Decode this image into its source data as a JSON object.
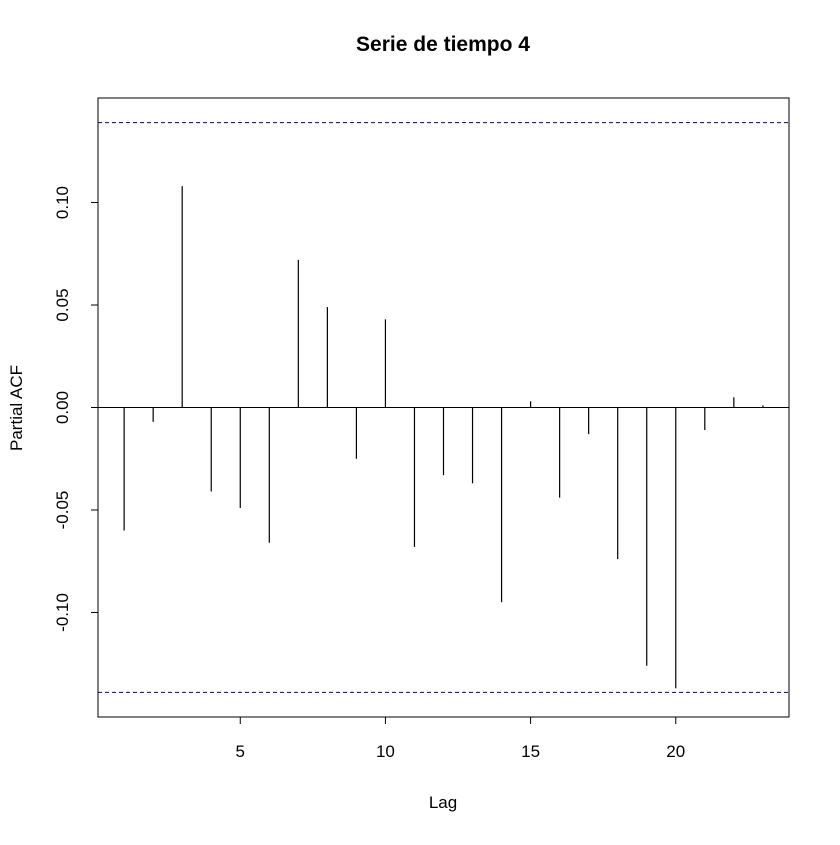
{
  "chart_data": {
    "type": "bar",
    "title": "Serie de tiempo 4",
    "xlabel": "Lag",
    "ylabel": "Partial ACF",
    "x": [
      1,
      2,
      3,
      4,
      5,
      6,
      7,
      8,
      9,
      10,
      11,
      12,
      13,
      14,
      15,
      16,
      17,
      18,
      19,
      20,
      21,
      22,
      23
    ],
    "series": [
      {
        "values": [
          -0.06,
          -0.007,
          0.108,
          -0.041,
          -0.049,
          -0.066,
          0.072,
          0.049,
          -0.025,
          0.043,
          -0.068,
          -0.033,
          -0.037,
          -0.095,
          0.003,
          -0.044,
          -0.013,
          -0.074,
          -0.126,
          -0.137,
          -0.011,
          0.005,
          0.001
        ]
      }
    ],
    "xlim": [
      0.1,
      23.9
    ],
    "ylim": [
      -0.151,
      0.151
    ],
    "x_ticks": [
      5,
      10,
      15,
      20
    ],
    "x_tick_labels": [
      "5",
      "10",
      "15",
      "20"
    ],
    "y_ticks": [
      -0.1,
      -0.05,
      0.0,
      0.05,
      0.1
    ],
    "y_tick_labels": [
      "-0.10",
      "-0.05",
      "0.00",
      "0.05",
      "0.10"
    ],
    "confidence_bound": 0.139,
    "zero_line": true,
    "grid": false,
    "legend": "none",
    "colors": {
      "bars": "#000000",
      "confidence_lines": "#00008B",
      "frame": "#000000"
    }
  }
}
